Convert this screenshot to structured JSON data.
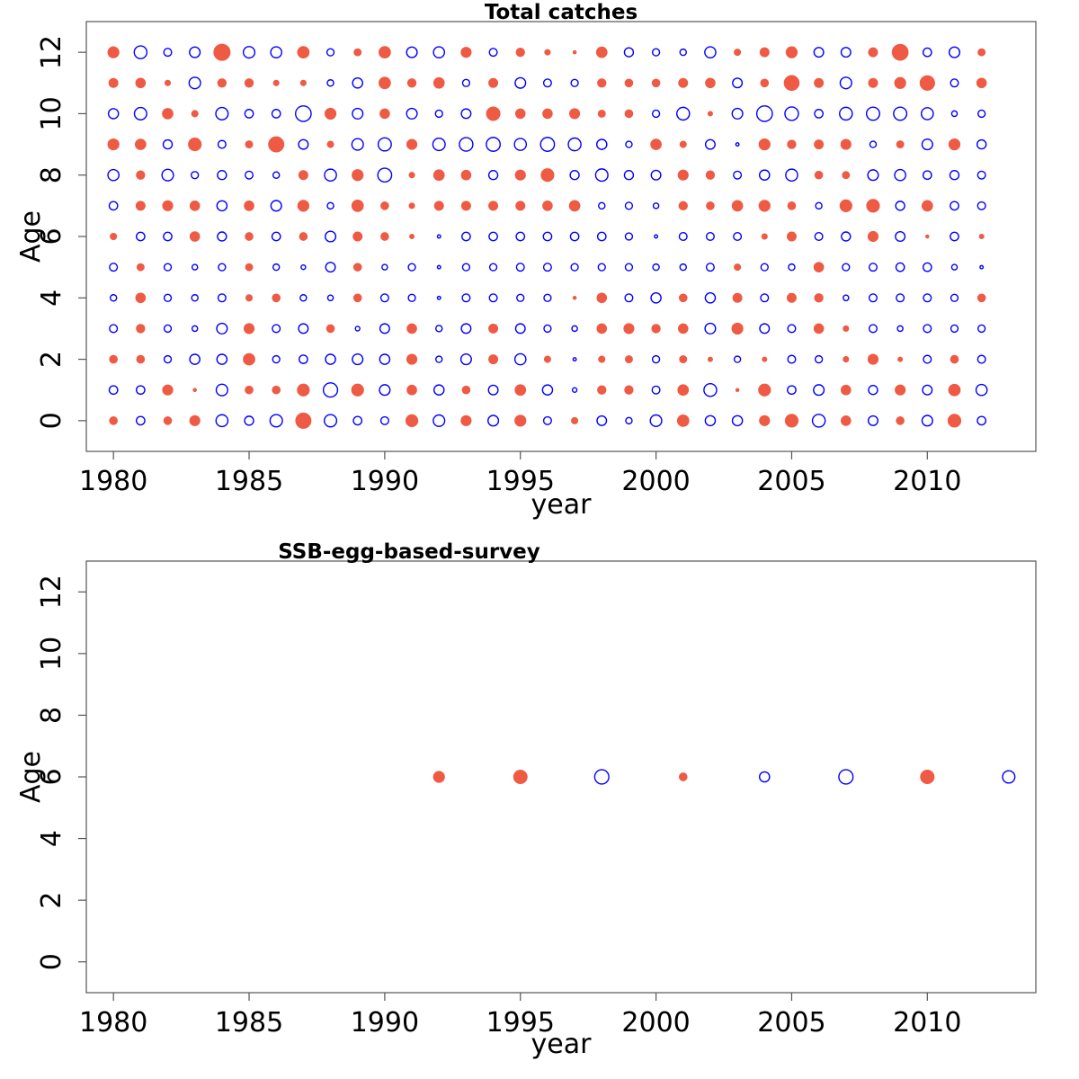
{
  "colors": {
    "positive": "#ee5a44",
    "negative": "#0000ff"
  },
  "chart_data": [
    {
      "type": "scatter",
      "title": "Total catches",
      "xlabel": "year",
      "ylabel": "Age",
      "xlim": [
        1979,
        2014
      ],
      "ylim": [
        -1,
        13
      ],
      "xticks": [
        1980,
        1985,
        1990,
        1995,
        2000,
        2005,
        2010
      ],
      "yticks": [
        0,
        2,
        4,
        6,
        8,
        10,
        12
      ],
      "x_start": 1980,
      "ages": [
        12,
        11,
        10,
        9,
        8,
        7,
        6,
        5,
        4,
        3,
        2,
        1,
        0
      ],
      "residuals": [
        [
          1.2,
          -1.6,
          -0.6,
          -1.1,
          2.6,
          -1.3,
          -1.2,
          1.3,
          -0.5,
          0.5,
          1.3,
          -1.1,
          -1.2,
          1.0,
          -0.6,
          0.7,
          0.3,
          0.1,
          1.1,
          -0.8,
          -0.5,
          -0.4,
          -1.2,
          0.4,
          0.8,
          1.2,
          -0.9,
          -0.9,
          0.8,
          2.5,
          -0.7,
          -1.1,
          0.5
        ],
        [
          0.8,
          0.9,
          0.3,
          -1.3,
          0.7,
          0.7,
          0.3,
          0.3,
          -0.4,
          -1.0,
          1.3,
          0.7,
          1.1,
          -0.5,
          0.8,
          -1.1,
          -0.6,
          -0.5,
          0.7,
          0.6,
          0.6,
          0.8,
          0.9,
          -0.9,
          0.6,
          2.2,
          0.8,
          -1.3,
          0.8,
          1.2,
          2.1,
          -0.6,
          0.9
        ],
        [
          -1.0,
          -1.5,
          1.1,
          0.4,
          -1.5,
          -0.7,
          -0.7,
          -2.4,
          1.2,
          -1.1,
          0.9,
          -1.1,
          -0.5,
          -0.9,
          1.8,
          0.9,
          0.9,
          1.0,
          0.5,
          0.6,
          -0.5,
          -1.6,
          0.2,
          -1.1,
          -2.4,
          -1.8,
          -0.7,
          -1.6,
          -1.7,
          -1.7,
          -1.4,
          -0.3,
          -0.5
        ],
        [
          1.2,
          1.1,
          -0.8,
          1.6,
          -0.6,
          0.5,
          2.3,
          -0.9,
          0.4,
          -1.3,
          -1.7,
          1.0,
          -1.5,
          -1.8,
          -1.9,
          -1.4,
          -1.9,
          -1.6,
          -1.0,
          -0.4,
          1.1,
          0.4,
          -0.9,
          -0.1,
          1.2,
          0.7,
          0.8,
          1.0,
          -0.4,
          0.5,
          -1.1,
          1.2,
          -0.8
        ],
        [
          -1.2,
          0.7,
          -1.3,
          -0.5,
          -0.8,
          -0.6,
          -0.4,
          0.8,
          -1.4,
          1.2,
          -1.9,
          0.3,
          1.1,
          0.9,
          -0.8,
          1.0,
          1.6,
          -0.8,
          -1.5,
          -0.8,
          -0.9,
          1.0,
          0.7,
          -0.6,
          -1.0,
          -1.4,
          0.6,
          0.5,
          -1.1,
          -1.2,
          -0.7,
          -0.8,
          -0.6
        ],
        [
          -0.7,
          0.8,
          1.0,
          0.9,
          -1.0,
          0.9,
          -1.1,
          1.2,
          -0.4,
          1.3,
          0.6,
          0.3,
          0.8,
          0.8,
          0.8,
          0.8,
          0.9,
          1.1,
          -0.4,
          -0.5,
          -0.3,
          0.7,
          0.6,
          1.1,
          1.2,
          0.6,
          -0.4,
          1.4,
          1.6,
          -0.8,
          1.1,
          -0.7,
          -0.6
        ],
        [
          0.4,
          -0.7,
          -0.7,
          0.9,
          -0.8,
          0.6,
          -0.7,
          0.6,
          -1.1,
          0.8,
          0.6,
          0.2,
          -0.1,
          -0.7,
          -0.7,
          -0.7,
          -0.7,
          -0.7,
          -0.7,
          -0.5,
          -0.1,
          -0.6,
          -0.6,
          -0.6,
          0.3,
          0.8,
          -0.6,
          -0.8,
          1.0,
          -0.9,
          0.1,
          -0.7,
          0.2
        ],
        [
          -0.6,
          0.5,
          -0.5,
          -0.3,
          -0.5,
          0.5,
          -0.4,
          -0.2,
          -0.9,
          0.6,
          -0.3,
          -0.5,
          -0.1,
          -0.5,
          -0.5,
          -0.6,
          -0.6,
          -0.5,
          -0.5,
          -0.5,
          -0.4,
          -0.4,
          -0.6,
          0.4,
          -0.5,
          -0.4,
          0.9,
          -0.5,
          -0.6,
          -0.7,
          -0.7,
          -0.3,
          -0.1
        ],
        [
          -0.4,
          0.9,
          -0.5,
          -0.4,
          -0.6,
          0.4,
          0.6,
          -0.4,
          -0.3,
          0.6,
          -0.6,
          -0.5,
          -0.1,
          -0.6,
          -0.6,
          -0.5,
          -0.5,
          0.1,
          0.9,
          -0.6,
          -1.0,
          0.6,
          -1.0,
          0.8,
          -0.6,
          0.8,
          0.7,
          -0.3,
          -0.6,
          -0.6,
          -0.6,
          -0.5,
          0.6
        ],
        [
          -0.6,
          0.7,
          -0.5,
          -0.3,
          -1.1,
          1.0,
          -0.6,
          -0.9,
          0.6,
          -0.2,
          -0.9,
          0.9,
          -0.4,
          -0.9,
          0.8,
          -0.9,
          -0.5,
          -0.3,
          0.9,
          1.0,
          0.7,
          0.9,
          -1.1,
          1.2,
          -0.9,
          -0.6,
          0.9,
          0.3,
          -0.6,
          -0.3,
          -0.6,
          -0.5,
          -0.5
        ],
        [
          0.6,
          0.6,
          -0.5,
          -1.0,
          -1.0,
          1.3,
          -0.5,
          -0.7,
          -1.0,
          -1.1,
          -1.0,
          1.0,
          -0.4,
          -1.1,
          0.8,
          -1.2,
          0.4,
          -0.1,
          0.4,
          0.5,
          -0.5,
          0.5,
          0.2,
          -0.4,
          0.2,
          -0.6,
          -0.5,
          0.3,
          1.0,
          0.2,
          -0.6,
          0.6,
          -0.6
        ],
        [
          -0.7,
          -0.7,
          1.0,
          0.1,
          -1.3,
          0.6,
          0.6,
          1.4,
          -2.0,
          1.4,
          -1.1,
          0.9,
          -1.0,
          0.6,
          -0.9,
          1.1,
          -1.0,
          -0.2,
          0.7,
          0.7,
          -0.6,
          1.1,
          -1.6,
          0.1,
          1.4,
          -0.7,
          -1.1,
          0.9,
          -0.8,
          1.0,
          -0.9,
          1.3,
          -1.2
        ],
        [
          0.6,
          -0.7,
          0.6,
          1.0,
          -1.4,
          -0.8,
          -1.5,
          2.3,
          -1.5,
          -0.7,
          -0.6,
          1.4,
          -1.3,
          1.0,
          -1.1,
          1.2,
          -0.6,
          0.4,
          -0.9,
          -0.4,
          -1.3,
          1.3,
          -1.0,
          -1.0,
          1.0,
          1.6,
          -1.6,
          0.9,
          -0.9,
          0.6,
          -1.1,
          1.6,
          -0.7
        ]
      ]
    },
    {
      "type": "scatter",
      "title": "SSB-egg-based-survey",
      "xlabel": "year",
      "ylabel": "Age",
      "xlim": [
        1979,
        2014
      ],
      "ylim": [
        -1,
        13
      ],
      "xticks": [
        1980,
        1985,
        1990,
        1995,
        2000,
        2005,
        2010
      ],
      "yticks": [
        0,
        2,
        4,
        6,
        8,
        10,
        12
      ],
      "points": [
        {
          "x": 1992,
          "y": 6,
          "v": 1.2
        },
        {
          "x": 1995,
          "y": 6,
          "v": 1.8
        },
        {
          "x": 1998,
          "y": 6,
          "v": -2.0
        },
        {
          "x": 2001,
          "y": 6,
          "v": 0.6
        },
        {
          "x": 2004,
          "y": 6,
          "v": -1.0
        },
        {
          "x": 2007,
          "y": 6,
          "v": -2.0
        },
        {
          "x": 2010,
          "y": 6,
          "v": 1.8
        },
        {
          "x": 2013,
          "y": 6,
          "v": -1.5
        }
      ]
    }
  ]
}
